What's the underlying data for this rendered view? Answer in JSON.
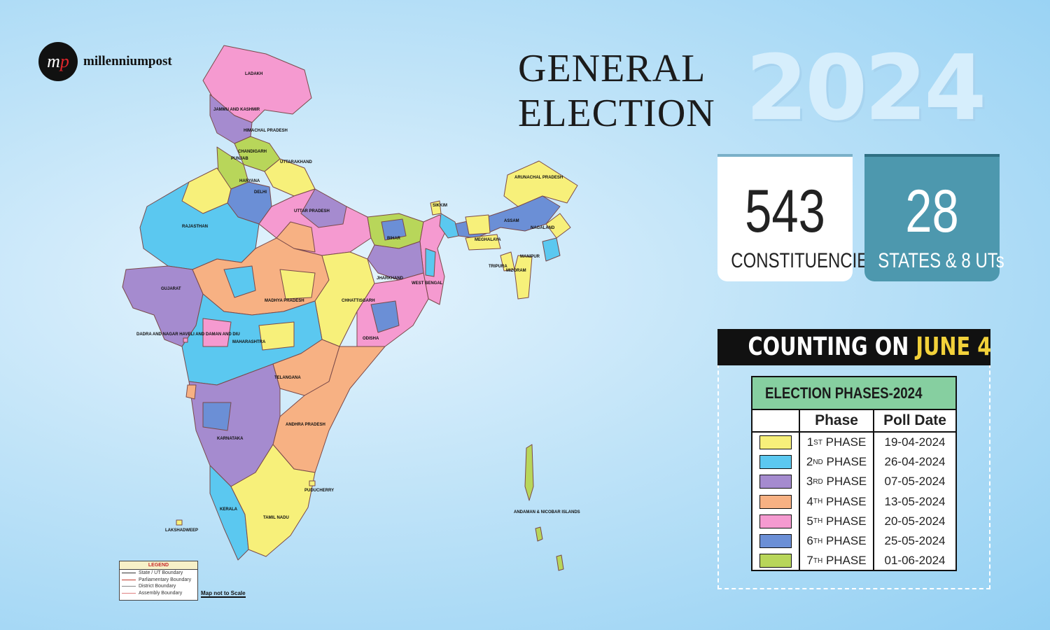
{
  "brand": {
    "mark_m": "m",
    "mark_p": "p",
    "name": "millenniumpost"
  },
  "title": {
    "line1": "GENERAL",
    "line2": "ELECTION",
    "year": "2024"
  },
  "stats": [
    {
      "value": "543",
      "label": "CONSTITUENCIES"
    },
    {
      "value": "28",
      "label": "STATES & 8 UTs"
    }
  ],
  "counting": {
    "prefix": "COUNTING ON ",
    "date": "JUNE 4"
  },
  "phases_table": {
    "heading": "ELECTION PHASES-2024",
    "col_phase": "Phase",
    "col_date": "Poll Date",
    "rows": [
      {
        "num": "1",
        "sup": "ST",
        "suffix": " PHASE",
        "date": "19-04-2024",
        "color": "#f7f07a"
      },
      {
        "num": "2",
        "sup": "ND",
        "suffix": " PHASE",
        "date": "26-04-2024",
        "color": "#5bc8f0"
      },
      {
        "num": "3",
        "sup": "RD",
        "suffix": " PHASE",
        "date": "07-05-2024",
        "color": "#a58bcf"
      },
      {
        "num": "4",
        "sup": "TH",
        "suffix": " PHASE",
        "date": "13-05-2024",
        "color": "#f7b183"
      },
      {
        "num": "5",
        "sup": "TH",
        "suffix": " PHASE",
        "date": "20-05-2024",
        "color": "#f59ad0"
      },
      {
        "num": "6",
        "sup": "TH",
        "suffix": " PHASE",
        "date": "25-05-2024",
        "color": "#6b8fd6"
      },
      {
        "num": "7",
        "sup": "TH",
        "suffix": " PHASE",
        "date": "01-06-2024",
        "color": "#b8d65a"
      }
    ]
  },
  "map_labels": {
    "ladakh": "LADAKH",
    "jk": "JAMMU AND KASHMIR",
    "hp": "HIMACHAL PRADESH",
    "chandigarh": "CHANDIGARH",
    "punjab": "PUNJAB",
    "uttarakhand": "UTTARAKHAND",
    "haryana": "HARYANA",
    "delhi": "DELHI",
    "rajasthan": "RAJASTHAN",
    "up": "UTTAR PRADESH",
    "sikkim": "SIKKIM",
    "arunachal": "ARUNACHAL PRADESH",
    "assam": "ASSAM",
    "nagaland": "NAGALAND",
    "meghalaya": "MEGHALAYA",
    "manipur": "MANIPUR",
    "tripura": "TRIPURA",
    "mizoram": "MIZORAM",
    "bihar": "BIHAR",
    "jharkhand": "JHARKHAND",
    "wb": "WEST BENGAL",
    "gujarat": "GUJARAT",
    "mp": "MADHYA PRADESH",
    "chhattisgarh": "CHHATTISGARH",
    "dnh": "DADRA AND NAGAR HAVELI AND DAMAN AND DIU",
    "maharashtra": "MAHARASHTRA",
    "odisha": "ODISHA",
    "telangana": "TELANGANA",
    "ap": "ANDHRA PRADESH",
    "karnataka": "KARNATAKA",
    "puducherry": "PUDUCHERRY",
    "kerala": "KERALA",
    "tn": "TAMIL NADU",
    "lakshadweep": "LAKSHADWEEP",
    "andaman": "ANDAMAN & NICOBAR ISLANDS"
  },
  "legend": {
    "title": "LEGEND",
    "items": [
      {
        "label": "State / UT Boundary",
        "color": "#333333"
      },
      {
        "label": "Parliamentary Boundary",
        "color": "#c0392b"
      },
      {
        "label": "District Boundary",
        "color": "#888888"
      },
      {
        "label": "Assembly Boundary",
        "color": "#e08080"
      }
    ],
    "scale_note": "Map not to Scale"
  }
}
